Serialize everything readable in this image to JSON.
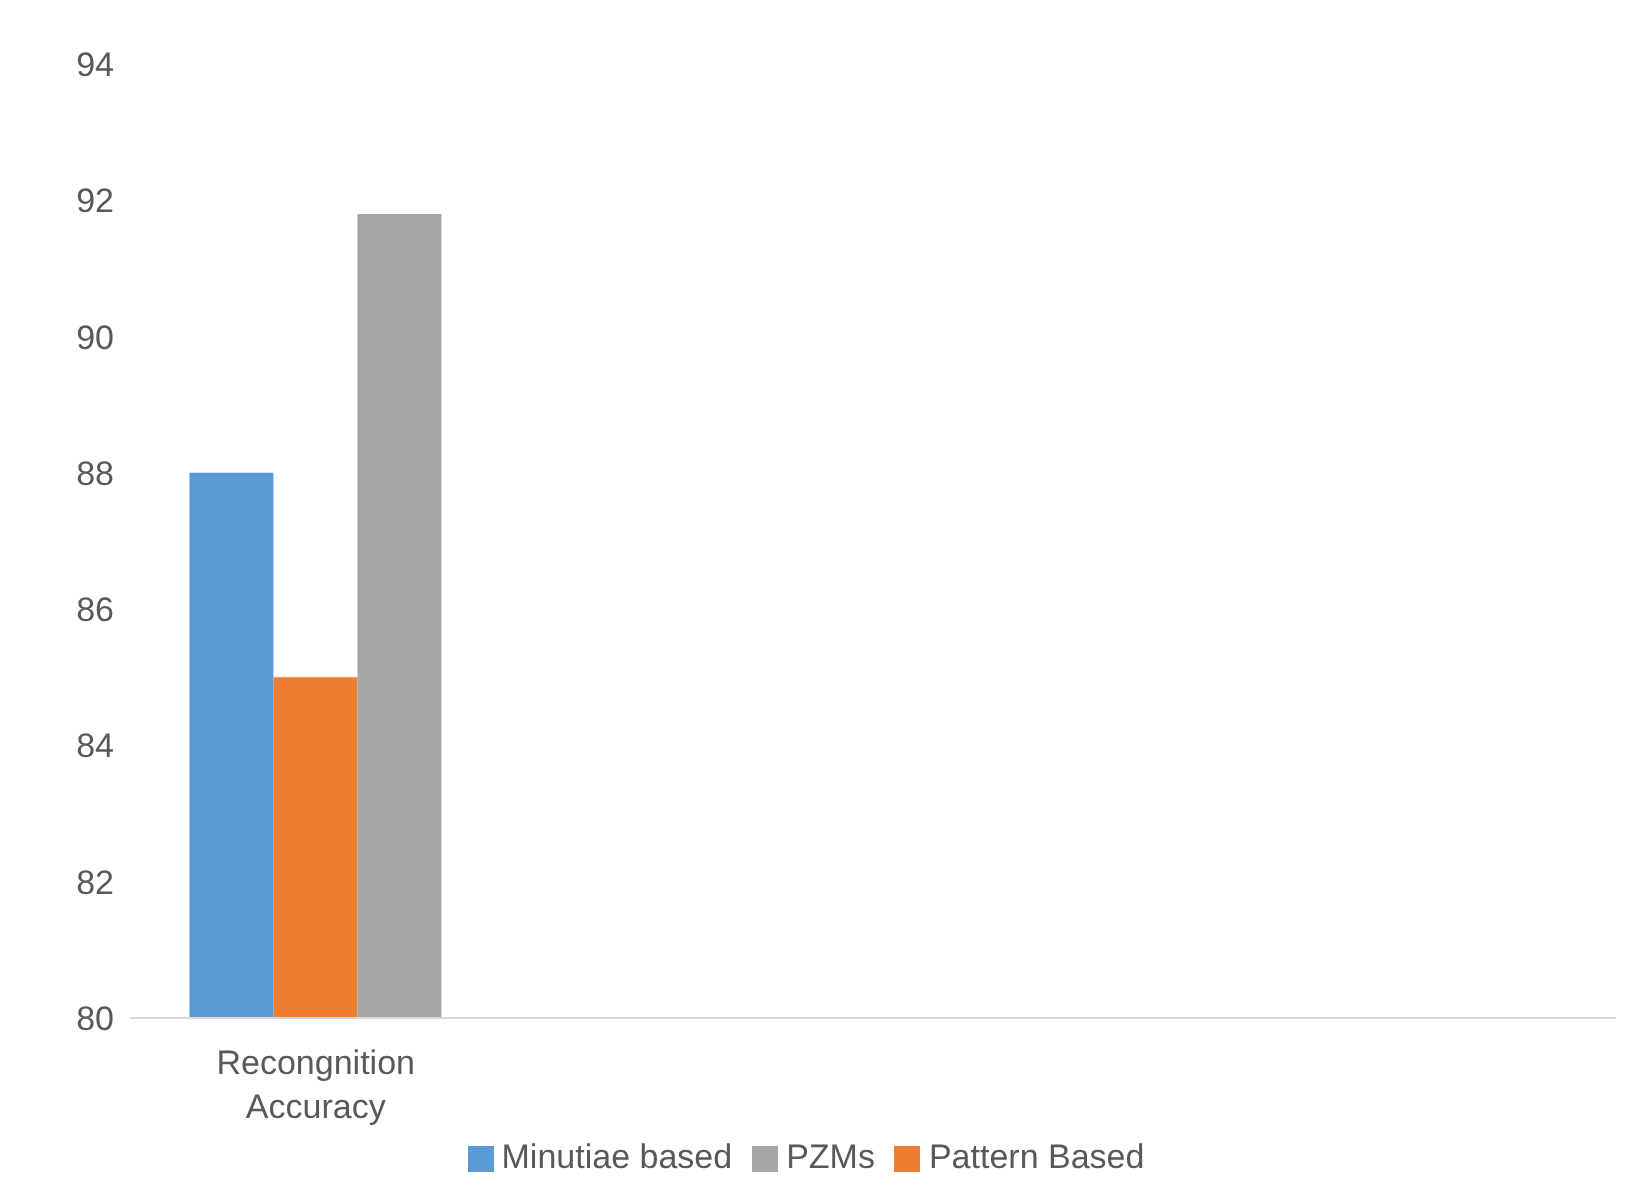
{
  "chart_data": {
    "type": "bar",
    "categories": [
      "Recongnition Accuracy",
      null,
      null,
      null
    ],
    "series": [
      {
        "name": "Minutiae based",
        "color": "#5b9bd5",
        "values": [
          88,
          null,
          null,
          null
        ]
      },
      {
        "name": "Pattern Based",
        "color": "#ed7d31",
        "values": [
          85,
          null,
          null,
          null
        ]
      },
      {
        "name": "PZMs",
        "color": "#a5a5a5",
        "values": [
          91.8,
          null,
          null,
          null
        ]
      }
    ],
    "ylim": [
      80,
      94
    ],
    "yticks": [
      80,
      82,
      84,
      86,
      88,
      90,
      92,
      94
    ],
    "grid": false,
    "legend": "bottom"
  }
}
